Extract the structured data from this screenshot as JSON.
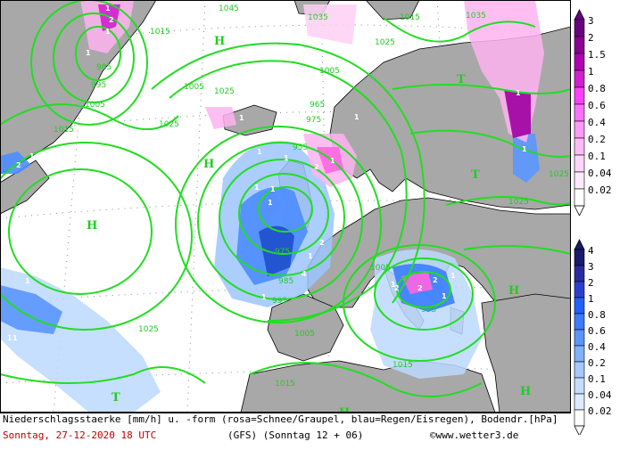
{
  "map": {
    "isobar_labels": [
      "1025",
      "1015",
      "1045",
      "1035",
      "1005",
      "995",
      "985",
      "975",
      "965",
      "955",
      "1025",
      "1015",
      "1005",
      "995",
      "985",
      "975",
      "1005",
      "1015",
      "1025",
      "1035",
      "1025",
      "1005",
      "995",
      "1015",
      "1025",
      "1005",
      "1015",
      "1025"
    ],
    "pressure_centers": [
      "H",
      "H",
      "H",
      "T",
      "T",
      "H",
      "H",
      "T",
      "H"
    ],
    "precip_cell_labels": [
      "1",
      "2",
      "1",
      "1",
      "2",
      "1",
      "1",
      "2",
      "1",
      "1",
      "1",
      "1",
      "2",
      "1",
      "1",
      "1",
      "1",
      "1",
      "2",
      "4",
      "1",
      "1",
      "2",
      "2",
      "1",
      "1",
      "1",
      "1",
      "1",
      "1",
      "1"
    ],
    "colors": {
      "isobar": "#22dd22",
      "land": "#a8a8a8",
      "sea": "#ffffff",
      "coast": "#000000",
      "rain_light": "#cfe8ff",
      "rain_mid": "#6fa8ff",
      "rain_heavy": "#1f4fcc",
      "snow_light": "#ffd0f5",
      "snow_mid": "#ff66e0",
      "snow_heavy": "#a000a0"
    }
  },
  "legend_snow": {
    "ticks": [
      "3",
      "2",
      "1.5",
      "1",
      "0.8",
      "0.6",
      "0.4",
      "0.2",
      "0.1",
      "0.04",
      "0.02"
    ],
    "colors": [
      "#6a0080",
      "#8a0090",
      "#b000b0",
      "#d020d0",
      "#ff40ff",
      "#ff70ff",
      "#ff99f5",
      "#ffbbf7",
      "#ffd5fa",
      "#ffe9fd",
      "#ffffff"
    ]
  },
  "legend_rain": {
    "ticks": [
      "4",
      "3",
      "2",
      "1",
      "0.8",
      "0.6",
      "0.4",
      "0.2",
      "0.1",
      "0.04",
      "0.02"
    ],
    "colors": [
      "#1a1a6e",
      "#2a2aa0",
      "#2b3fcf",
      "#1f62ff",
      "#3a7dff",
      "#5a96ff",
      "#7fb0ff",
      "#a5c8ff",
      "#c5dcff",
      "#dcebff",
      "#ffffff"
    ]
  },
  "footer": {
    "line1": "Niederschlagsstaerke [mm/h] u. -form (rosa=Schnee/Graupel, blau=Regen/Eisregen), Bodendr.[hPa]",
    "date": "Sonntag, 27-12-2020  18 UTC",
    "model": "(GFS)  (Sonntag 12 + 06)",
    "copyright": "©www.wetter3.de"
  }
}
